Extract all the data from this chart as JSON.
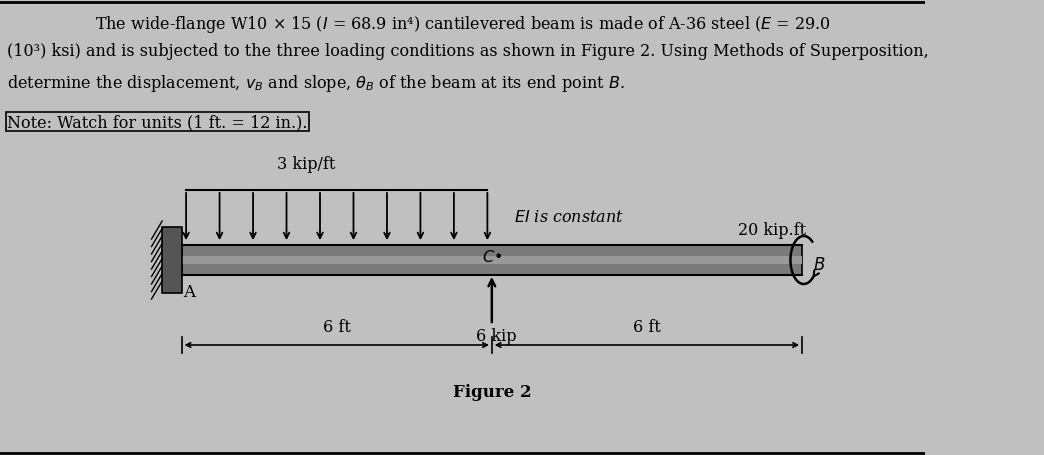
{
  "bg_color": "#c0c0c0",
  "line1": "The wide-flange W10 × 15 ($I$ = 68.9 in⁴) cantilevered beam is made of A-36 steel ($E$ = 29.0",
  "line2": "(10³) ksi) and is subjected to the three loading conditions as shown in Figure 2. Using Methods of Superposition,",
  "line3": "determine the displacement, $v_B$ and slope, $\\theta_B$ of the beam at its end point $B$.",
  "note": "Note: Watch for units (1 ft. = 12 in.).",
  "figure_label": "Figure 2",
  "dist_load_label": "3 kip/ft",
  "point_load_label": "6 kip",
  "moment_label": "20 kip.ft",
  "EI_label": "$EI$ is constant",
  "dim1_label": "6 ft",
  "dim2_label": "6 ft",
  "label_A": "A",
  "label_B": "$B$",
  "label_C": "$C$",
  "num_dist_arrows": 10,
  "beam_color": "#7a7a7a",
  "wall_color": "#555555",
  "text_fontsize": 11.5,
  "note_fontsize": 11.5
}
